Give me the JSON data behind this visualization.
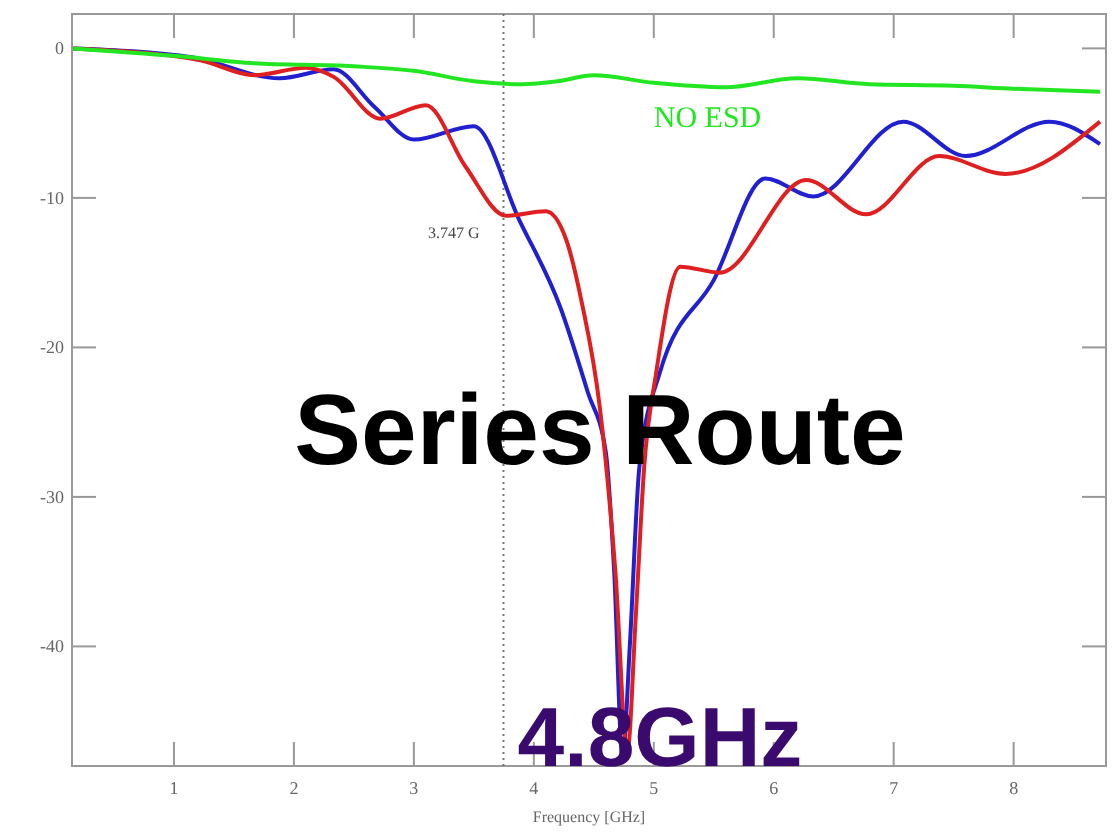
{
  "chart_data": {
    "type": "line",
    "xlabel": "Frequency [GHz]",
    "xlim": [
      0.15,
      8.77
    ],
    "ylim": [
      -48,
      2.3
    ],
    "xticks": [
      1,
      2,
      3,
      4,
      5,
      6,
      7,
      8
    ],
    "yticks": [
      -40,
      -30,
      -20,
      -10,
      0
    ],
    "grid": false,
    "marker": "none",
    "line_style": "solid",
    "series": [
      {
        "name": "NO ESD",
        "color": "#22e622",
        "x": [
          0.16,
          1.0,
          1.67,
          2.5,
          3.0,
          3.5,
          3.9,
          4.2,
          4.5,
          5.0,
          5.6,
          6.2,
          6.8,
          7.5,
          8.0,
          8.72
        ],
        "values": [
          0,
          -0.5,
          -1.0,
          -1.2,
          -1.5,
          -2.2,
          -2.4,
          -2.2,
          -1.8,
          -2.3,
          -2.6,
          -2.0,
          -2.4,
          -2.5,
          -2.7,
          -2.9
        ]
      },
      {
        "color": "#e02020",
        "x": [
          0.16,
          1.22,
          1.67,
          2.1,
          2.33,
          2.72,
          3.1,
          3.43,
          3.77,
          4.1,
          4.27,
          4.4,
          4.55,
          4.68,
          4.78,
          4.85,
          4.92,
          5.02,
          5.22,
          5.55,
          6.27,
          6.77,
          7.38,
          7.93,
          8.72
        ],
        "values": [
          0,
          -0.8,
          -1.8,
          -1.3,
          -1.9,
          -4.7,
          -3.8,
          -7.9,
          -11.2,
          -10.9,
          -12.8,
          -17,
          -24,
          -35,
          -47,
          -38,
          -28,
          -21.7,
          -14.6,
          -15,
          -8.8,
          -11.1,
          -7.2,
          -8.4,
          -4.9
        ]
      },
      {
        "color": "#2020d0",
        "x": [
          0.16,
          1.16,
          1.88,
          2.33,
          2.67,
          3.0,
          3.5,
          3.88,
          4.22,
          4.45,
          4.6,
          4.67,
          4.74,
          4.8,
          4.88,
          5.05,
          5.5,
          5.93,
          6.33,
          7.08,
          7.6,
          8.3,
          8.72
        ],
        "values": [
          0,
          -0.6,
          -2.0,
          -1.4,
          -3.9,
          -6.1,
          -5.2,
          -11.5,
          -17.3,
          -23,
          -27,
          -35,
          -47.5,
          -40,
          -28,
          -21.7,
          -15.5,
          -8.7,
          -9.9,
          -4.9,
          -7.2,
          -4.9,
          -6.4
        ]
      }
    ],
    "ref_lines": [
      {
        "axis": "x",
        "value": 3.747,
        "label": "3.747 G",
        "line_style": "dotted",
        "color": "#777777"
      }
    ],
    "annotations": [
      "Series Route",
      "4.8GHz"
    ]
  }
}
